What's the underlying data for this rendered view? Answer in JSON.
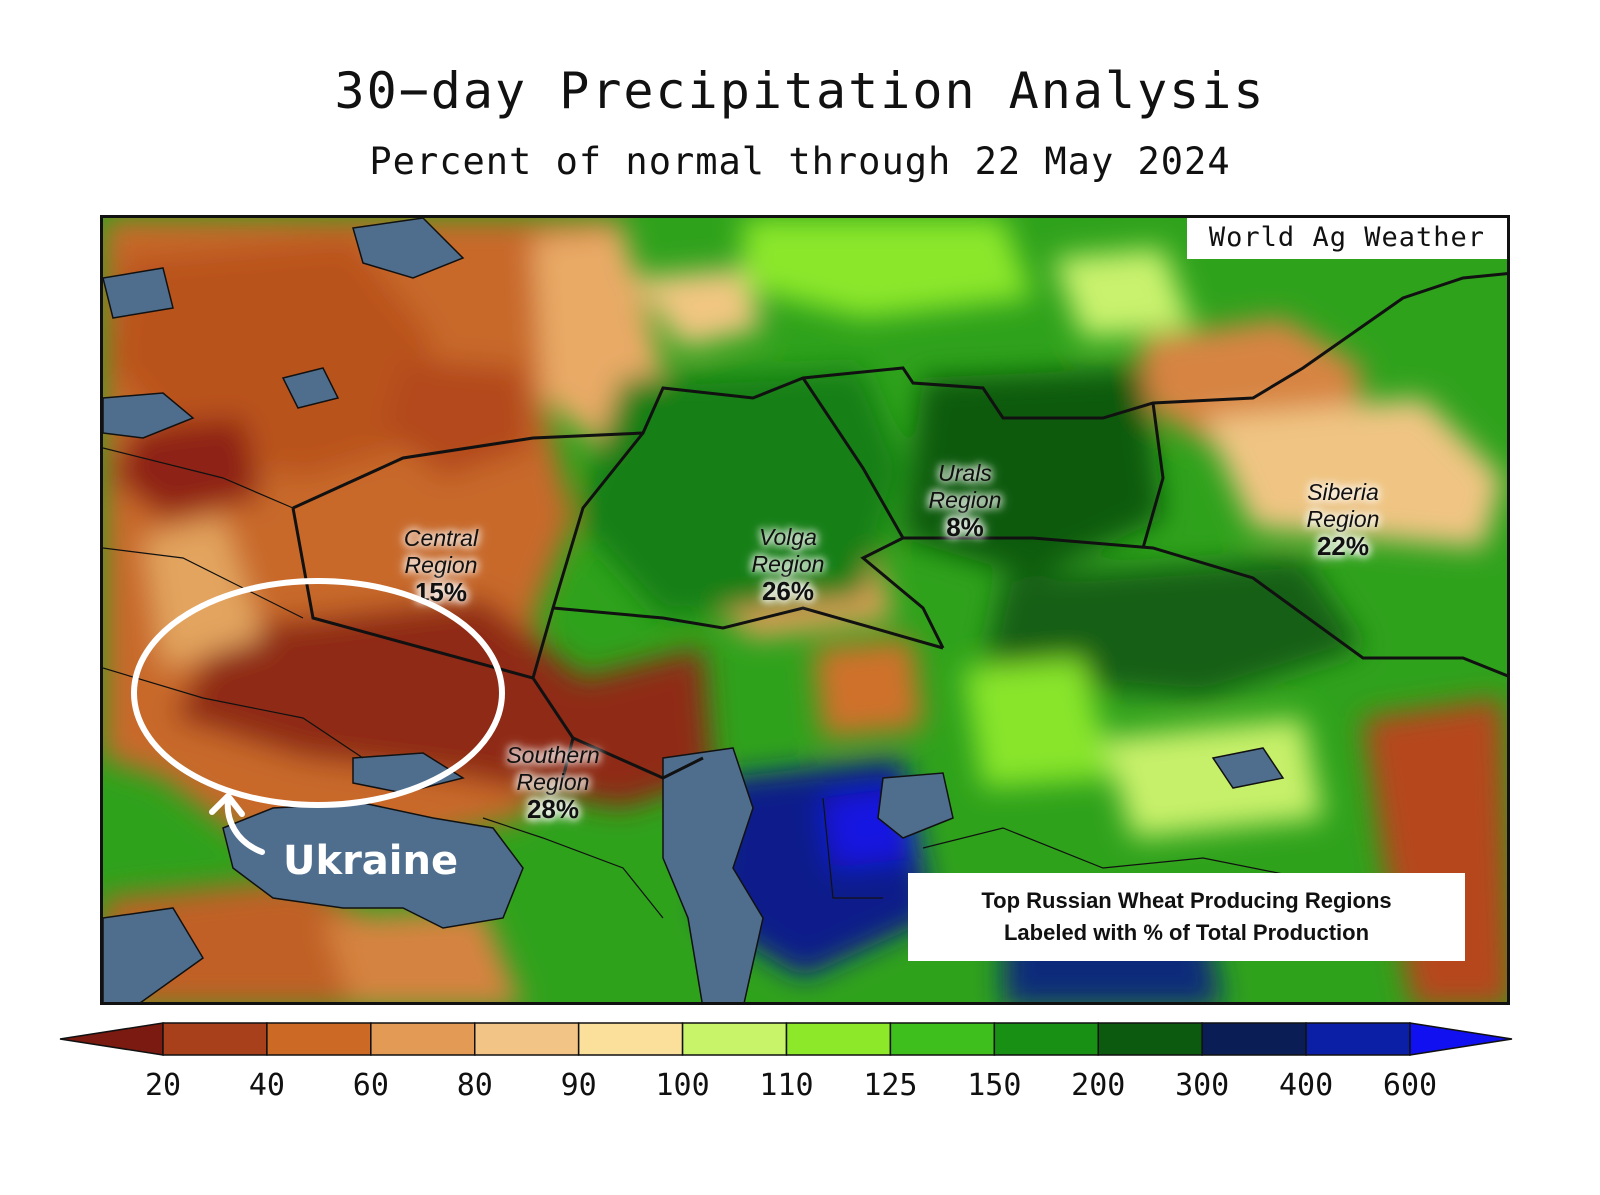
{
  "title": "30−day Precipitation Analysis",
  "subtitle": "Percent of normal through 22 May 2024",
  "credit": "World Ag Weather",
  "regions": [
    {
      "name_line1": "Central",
      "name_line2": "Region",
      "percent": "15%"
    },
    {
      "name_line1": "Volga",
      "name_line2": "Region",
      "percent": "26%"
    },
    {
      "name_line1": "Urals",
      "name_line2": "Region",
      "percent": "8%"
    },
    {
      "name_line1": "Siberia",
      "name_line2": "Region",
      "percent": "22%"
    },
    {
      "name_line1": "Southern",
      "name_line2": "Region",
      "percent": "28%"
    }
  ],
  "note": {
    "line1": "Top Russian Wheat Producing Regions",
    "line2": "Labeled with % of Total Production"
  },
  "annotation": "Ukraine",
  "legend": {
    "ticks": [
      "20",
      "40",
      "60",
      "80",
      "90",
      "100",
      "110",
      "125",
      "150",
      "200",
      "300",
      "400",
      "600"
    ],
    "colors": [
      "#7a1a10",
      "#a9401c",
      "#cc6a25",
      "#e29a55",
      "#f2c485",
      "#fbe09c",
      "#c8f46a",
      "#8ee82a",
      "#3fbf1e",
      "#179013",
      "#0b5a0f",
      "#0a1e55",
      "#0b1ea6",
      "#1010f0"
    ]
  }
}
